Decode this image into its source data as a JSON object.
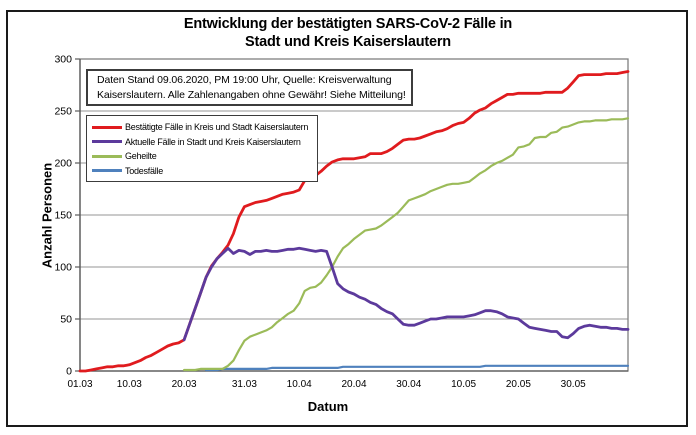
{
  "header": {
    "title_lines": [
      "Entwicklung der bestätigten SARS-CoV-2 Fälle in",
      "Stadt und Kreis Kaiserslautern"
    ]
  },
  "annotation": {
    "line1": "Daten Stand 09.06.2020, PM 19:00 Uhr, Quelle: Kreisverwaltung",
    "line2": "Kaiserslautern. Alle Zahlenangaben ohne Gewähr! Siehe Mitteilung!"
  },
  "axes": {
    "y_title": "Anzahl Personen",
    "x_title": "Datum"
  },
  "chart_data": {
    "type": "line",
    "title": "Entwicklung der bestätigten SARS-CoV-2 Fälle in Stadt und Kreis Kaiserslautern",
    "xlabel": "Datum",
    "ylabel": "Anzahl Personen",
    "ylim": [
      0,
      300
    ],
    "yticks": [
      0,
      50,
      100,
      150,
      200,
      250,
      300
    ],
    "grid": true,
    "legend_position": "top-left-inside",
    "colors": {
      "grid": "#969696",
      "plot_border": "#7f7f7f",
      "figure_border": "#1a1a1a"
    },
    "x": [
      "01.03",
      "02.03",
      "03.03",
      "04.03",
      "05.03",
      "06.03",
      "07.03",
      "08.03",
      "09.03",
      "10.03",
      "11.03",
      "12.03",
      "13.03",
      "14.03",
      "15.03",
      "16.03",
      "17.03",
      "18.03",
      "19.03",
      "20.03",
      "21.03",
      "22.03",
      "23.03",
      "24.03",
      "25.03",
      "26.03",
      "27.03",
      "28.03",
      "29.03",
      "30.03",
      "31.03",
      "01.04",
      "02.04",
      "03.04",
      "04.04",
      "05.04",
      "06.04",
      "07.04",
      "08.04",
      "09.04",
      "10.04",
      "11.04",
      "12.04",
      "13.04",
      "14.04",
      "15.04",
      "16.04",
      "17.04",
      "18.04",
      "19.04",
      "20.04",
      "21.04",
      "22.04",
      "23.04",
      "24.04",
      "25.04",
      "26.04",
      "27.04",
      "28.04",
      "29.04",
      "30.04",
      "01.05",
      "02.05",
      "03.05",
      "04.05",
      "05.05",
      "06.05",
      "07.05",
      "08.05",
      "09.05",
      "10.05",
      "11.05",
      "12.05",
      "13.05",
      "14.05",
      "15.05",
      "16.05",
      "17.05",
      "18.05",
      "19.05",
      "20.05",
      "21.05",
      "22.05",
      "23.05",
      "24.05",
      "25.05",
      "26.05",
      "27.05",
      "28.05",
      "29.05",
      "30.05",
      "31.05",
      "01.06",
      "02.06",
      "03.06",
      "04.06",
      "05.06",
      "06.06",
      "07.06",
      "08.06",
      "09.06"
    ],
    "xticks": [
      {
        "label": "01.03",
        "i": 0
      },
      {
        "label": "10.03",
        "i": 9
      },
      {
        "label": "20.03",
        "i": 19
      },
      {
        "label": "31.03",
        "i": 30
      },
      {
        "label": "10.04",
        "i": 40
      },
      {
        "label": "20.04",
        "i": 50
      },
      {
        "label": "30.04",
        "i": 60
      },
      {
        "label": "10.05",
        "i": 70
      },
      {
        "label": "20.05",
        "i": 80
      },
      {
        "label": "30.05",
        "i": 90
      }
    ],
    "series": [
      {
        "key": "bestaetigte",
        "name": "Bestätigte Fälle in Kreis und Stadt Kaiserslautern",
        "color": "#e01b1e",
        "width": 2.8,
        "values": [
          0,
          0,
          1,
          2,
          3,
          4,
          4,
          5,
          5,
          6,
          8,
          10,
          13,
          15,
          18,
          21,
          24,
          26,
          27,
          30,
          45,
          60,
          75,
          90,
          101,
          108,
          114,
          121,
          132,
          148,
          158,
          160,
          162,
          163,
          164,
          166,
          168,
          170,
          171,
          172,
          174,
          183,
          185,
          188,
          192,
          197,
          201,
          203,
          204,
          204,
          204,
          205,
          206,
          209,
          209,
          209,
          211,
          214,
          218,
          222,
          223,
          223,
          224,
          226,
          228,
          230,
          231,
          233,
          236,
          238,
          239,
          243,
          248,
          251,
          253,
          257,
          260,
          263,
          266,
          266,
          267,
          267,
          267,
          267,
          267,
          268,
          268,
          268,
          268,
          272,
          278,
          284,
          285,
          285,
          285,
          285,
          286,
          286,
          286,
          287,
          288
        ]
      },
      {
        "key": "aktuelle",
        "name": "Aktuelle Fälle in Stadt und Kreis Kaiserslautern",
        "color": "#5c3a9c",
        "width": 2.8,
        "values": [
          null,
          null,
          null,
          null,
          null,
          null,
          null,
          null,
          null,
          null,
          null,
          null,
          null,
          null,
          null,
          null,
          null,
          null,
          null,
          30,
          45,
          60,
          75,
          90,
          100,
          108,
          113,
          118,
          113,
          116,
          115,
          112,
          115,
          115,
          116,
          115,
          115,
          116,
          117,
          117,
          118,
          117,
          116,
          115,
          116,
          115,
          100,
          84,
          79,
          76,
          74,
          71,
          69,
          66,
          64,
          60,
          57,
          55,
          50,
          45,
          44,
          44,
          46,
          48,
          50,
          50,
          51,
          52,
          52,
          52,
          52,
          53,
          54,
          56,
          58,
          58,
          57,
          55,
          52,
          51,
          50,
          46,
          42,
          41,
          40,
          39,
          38,
          38,
          33,
          32,
          36,
          41,
          43,
          44,
          43,
          42,
          42,
          41,
          41,
          40,
          40
        ]
      },
      {
        "key": "geheilte",
        "name": "Geheilte",
        "color": "#9bbb59",
        "width": 2.2,
        "values": [
          null,
          null,
          null,
          null,
          null,
          null,
          null,
          null,
          null,
          null,
          null,
          null,
          null,
          null,
          null,
          null,
          null,
          null,
          null,
          1,
          1,
          1,
          2,
          2,
          2,
          2,
          2,
          5,
          10,
          20,
          29,
          33,
          35,
          37,
          39,
          42,
          47,
          51,
          55,
          58,
          65,
          77,
          80,
          81,
          85,
          92,
          100,
          110,
          118,
          122,
          127,
          131,
          135,
          136,
          137,
          140,
          144,
          148,
          152,
          158,
          164,
          166,
          168,
          170,
          173,
          175,
          177,
          179,
          180,
          180,
          181,
          182,
          186,
          190,
          193,
          197,
          200,
          202,
          205,
          208,
          215,
          216,
          218,
          224,
          225,
          225,
          229,
          230,
          234,
          235,
          237,
          239,
          240,
          240,
          241,
          241,
          241,
          242,
          242,
          242,
          243
        ]
      },
      {
        "key": "todesfaelle",
        "name": "Todesfälle",
        "color": "#4f81bd",
        "width": 2.2,
        "values": [
          null,
          null,
          null,
          null,
          null,
          null,
          null,
          null,
          null,
          null,
          null,
          null,
          null,
          null,
          null,
          null,
          null,
          null,
          null,
          null,
          null,
          null,
          null,
          1,
          1,
          1,
          2,
          2,
          2,
          2,
          2,
          2,
          2,
          2,
          2,
          3,
          3,
          3,
          3,
          3,
          3,
          3,
          3,
          3,
          3,
          3,
          3,
          3,
          4,
          4,
          4,
          4,
          4,
          4,
          4,
          4,
          4,
          4,
          4,
          4,
          4,
          4,
          4,
          4,
          4,
          4,
          4,
          4,
          4,
          4,
          4,
          4,
          4,
          4,
          5,
          5,
          5,
          5,
          5,
          5,
          5,
          5,
          5,
          5,
          5,
          5,
          5,
          5,
          5,
          5,
          5,
          5,
          5,
          5,
          5,
          5,
          5,
          5,
          5,
          5,
          5
        ]
      }
    ]
  }
}
